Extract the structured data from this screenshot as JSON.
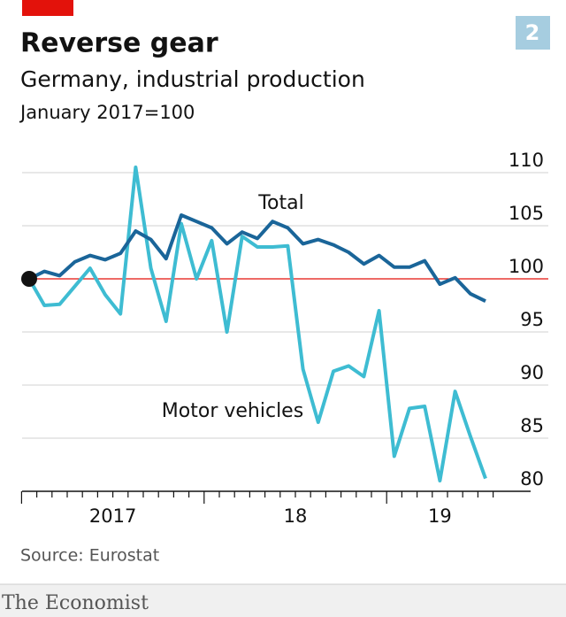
{
  "chart_data": {
    "type": "line",
    "title": "Reverse gear",
    "subtitle": "Germany, industrial production",
    "unit_label": "January 2017=100",
    "chart_number": "2",
    "source": "Source: Eurostat",
    "brand": "The Economist",
    "x_labels": [
      "2017",
      "18",
      "19"
    ],
    "ylim": [
      80,
      110
    ],
    "yticks": [
      80,
      85,
      90,
      95,
      100,
      105,
      110
    ],
    "baseline": 100,
    "grid": true,
    "series": [
      {
        "name": "Motor vehicles",
        "color": "#3ebcd2",
        "values": [
          100,
          97.5,
          97.6,
          99.3,
          101,
          98.5,
          96.7,
          110.5,
          101,
          96,
          105.2,
          100,
          103.6,
          95,
          104,
          103,
          103,
          103.1,
          91.5,
          86.5,
          91.3,
          91.8,
          90.8,
          97,
          83.3,
          87.8,
          88,
          81,
          89.4,
          85.2,
          81.2
        ]
      },
      {
        "name": "Total",
        "color": "#1a6599",
        "values": [
          100,
          100.7,
          100.3,
          101.6,
          102.2,
          101.8,
          102.4,
          104.5,
          103.7,
          101.9,
          106,
          105.4,
          104.8,
          103.3,
          104.4,
          103.8,
          105.4,
          104.8,
          103.3,
          103.7,
          103.2,
          102.5,
          101.4,
          102.2,
          101.1,
          101.1,
          101.7,
          99.5,
          100.1,
          98.6,
          97.9
        ]
      }
    ]
  }
}
